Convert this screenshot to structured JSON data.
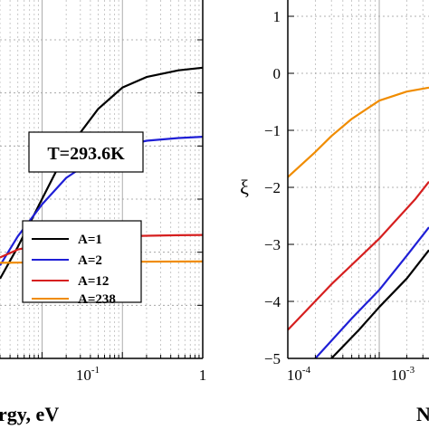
{
  "chart_data": [
    {
      "type": "line",
      "xlabel": "rgy, eV",
      "xscale": "log",
      "xlim": [
        0.003,
        1
      ],
      "x_tick_labels": [
        {
          "base": "10",
          "exp": "-1",
          "value": 0.1
        },
        {
          "base": "1",
          "exp": "",
          "value": 1
        }
      ],
      "grid": true,
      "annotation": "T=293.6K",
      "legend_position": "lower-right",
      "series": [
        {
          "name": "A=1",
          "color": "#000000",
          "x": [
            0.003,
            0.005,
            0.01,
            0.02,
            0.05,
            0.1,
            0.2,
            0.5,
            1
          ],
          "y": [
            0.2,
            0.32,
            0.5,
            0.68,
            0.84,
            0.92,
            0.96,
            0.985,
            0.995
          ]
        },
        {
          "name": "A=2",
          "color": "#1f1fd6",
          "x": [
            0.003,
            0.005,
            0.01,
            0.02,
            0.05,
            0.1,
            0.2,
            0.5,
            1
          ],
          "y": [
            0.25,
            0.36,
            0.48,
            0.58,
            0.66,
            0.7,
            0.72,
            0.73,
            0.735
          ]
        },
        {
          "name": "A=12",
          "color": "#d61f1f",
          "x": [
            0.003,
            0.005,
            0.01,
            0.02,
            0.05,
            0.1,
            0.2,
            0.5,
            1
          ],
          "y": [
            0.28,
            0.31,
            0.33,
            0.345,
            0.355,
            0.36,
            0.362,
            0.364,
            0.365
          ]
        },
        {
          "name": "A=238",
          "color": "#f08c00",
          "x": [
            0.003,
            0.01,
            0.1,
            1
          ],
          "y": [
            0.26,
            0.262,
            0.264,
            0.265
          ]
        }
      ]
    },
    {
      "type": "line",
      "xlabel": "N",
      "ylabel": "ξ",
      "xscale": "log",
      "xlim": [
        0.0001,
        0.0035
      ],
      "ylim": [
        -5,
        1
      ],
      "yticks": [
        1,
        0,
        -1,
        -2,
        -3,
        -4,
        -5
      ],
      "x_tick_labels": [
        {
          "base": "10",
          "exp": "-4",
          "value": 0.0001
        },
        {
          "base": "10",
          "exp": "-3",
          "value": 0.001
        }
      ],
      "grid": true,
      "series": [
        {
          "name": "A=238",
          "color": "#f08c00",
          "x": [
            0.0001,
            0.0002,
            0.0003,
            0.0005,
            0.001,
            0.002,
            0.0035
          ],
          "y": [
            -1.82,
            -1.38,
            -1.1,
            -0.8,
            -0.48,
            -0.32,
            -0.25
          ]
        },
        {
          "name": "A=12",
          "color": "#d61f1f",
          "x": [
            0.0001,
            0.0003,
            0.001,
            0.0025,
            0.0035
          ],
          "y": [
            -4.5,
            -3.7,
            -2.9,
            -2.2,
            -1.9
          ]
        },
        {
          "name": "A=2",
          "color": "#1f1fd6",
          "x": [
            0.0002,
            0.0005,
            0.001,
            0.002,
            0.0035
          ],
          "y": [
            -5,
            -4.3,
            -3.8,
            -3.2,
            -2.7
          ]
        },
        {
          "name": "A=1",
          "color": "#000000",
          "x": [
            0.0003,
            0.0006,
            0.001,
            0.002,
            0.0035
          ],
          "y": [
            -5,
            -4.5,
            -4.1,
            -3.6,
            -3.1
          ]
        }
      ]
    }
  ]
}
